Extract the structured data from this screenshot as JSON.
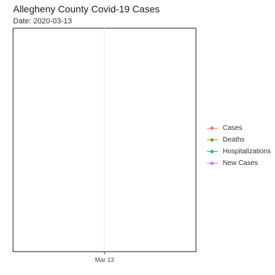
{
  "chart_data": {
    "type": "line",
    "title": "Allegheny County Covid-19 Cases",
    "subtitle": "Date: 2020-03-13",
    "xlabel": "",
    "ylabel": "",
    "x_ticks": [
      "Mar 13"
    ],
    "grid": true,
    "legend_position": "right",
    "series": [
      {
        "name": "Cases",
        "color": "#F8766D",
        "values": []
      },
      {
        "name": "Deaths",
        "color": "#7CAE00",
        "values": []
      },
      {
        "name": "Hospitalizations",
        "color": "#00BFC4",
        "values": []
      },
      {
        "name": "New Cases",
        "color": "#C77CFF",
        "values": []
      }
    ]
  }
}
